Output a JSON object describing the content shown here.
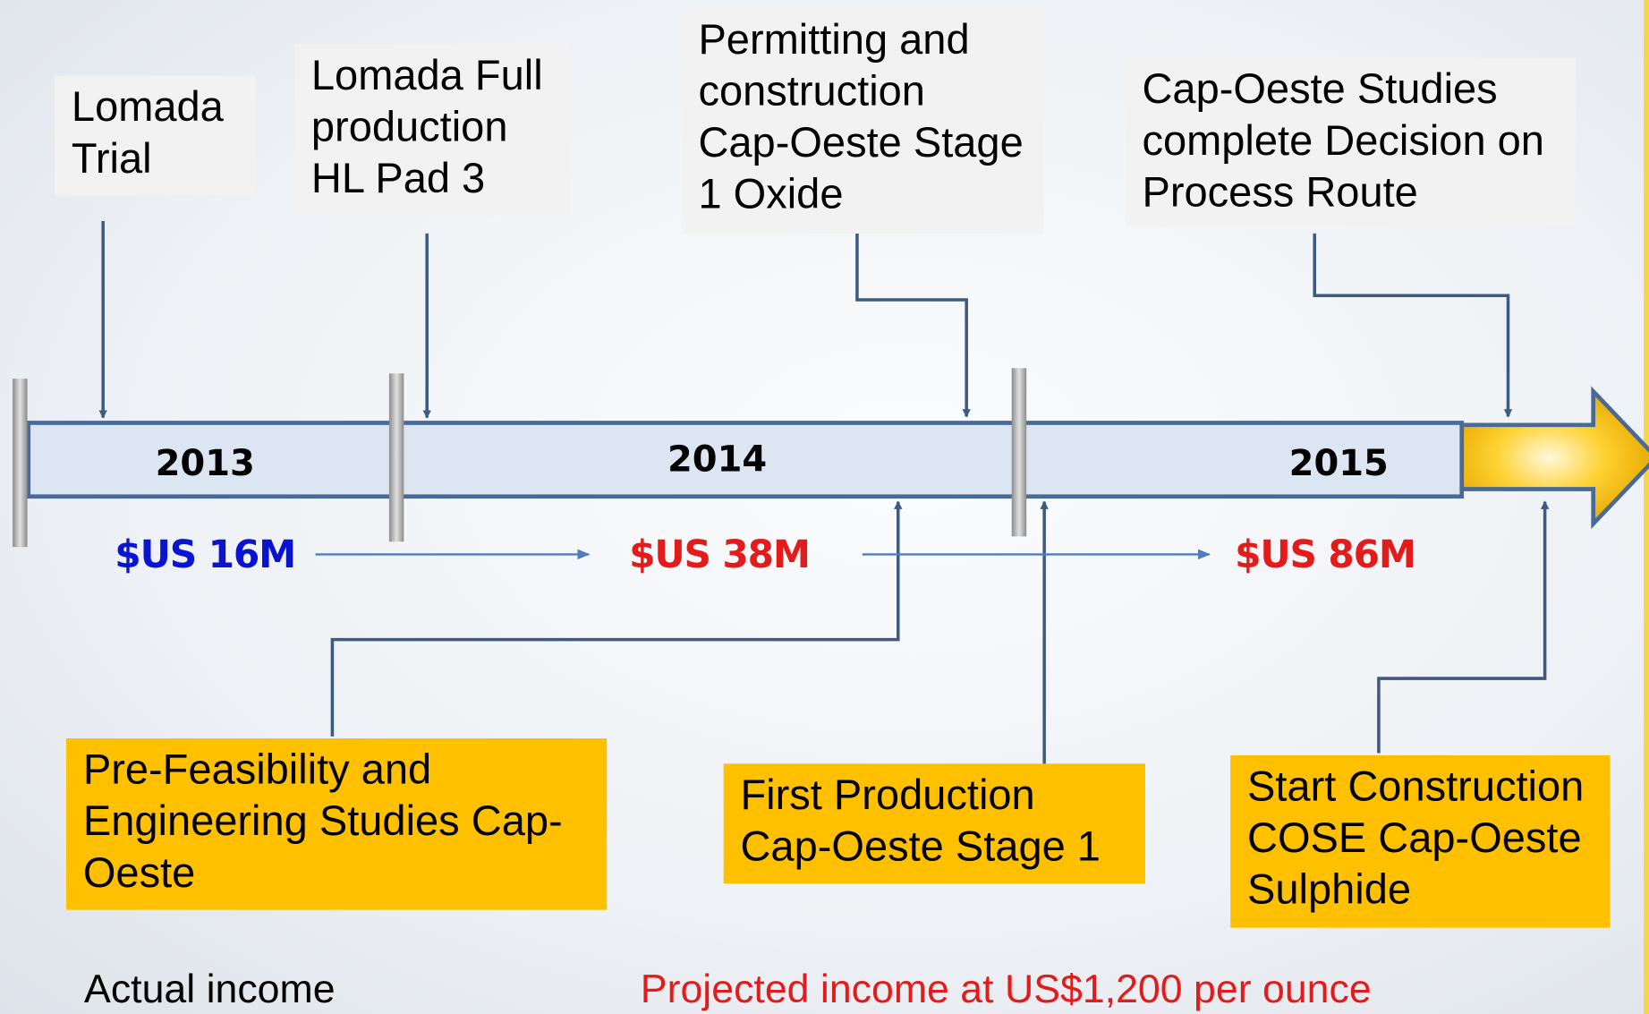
{
  "milestones_top": [
    {
      "label": "Lomada Trial"
    },
    {
      "label": "Lomada Full production HL Pad 3"
    },
    {
      "label": "Permitting and construction Cap-Oeste Stage 1 Oxide"
    },
    {
      "label": "Cap-Oeste Studies complete Decision on Process Route"
    }
  ],
  "milestones_bottom": [
    {
      "label": "Pre-Feasibility and Engineering Studies Cap-Oeste"
    },
    {
      "label": "First Production Cap-Oeste Stage 1"
    },
    {
      "label": "Start Construction COSE Cap-Oeste Sulphide"
    }
  ],
  "years": [
    "2013",
    "2014",
    "2015"
  ],
  "income": [
    "$US 16M",
    "$US 38M",
    "$US 86M"
  ],
  "notes": {
    "actual": "Actual income",
    "projected": "Projected income at US$1,200 per ounce"
  }
}
